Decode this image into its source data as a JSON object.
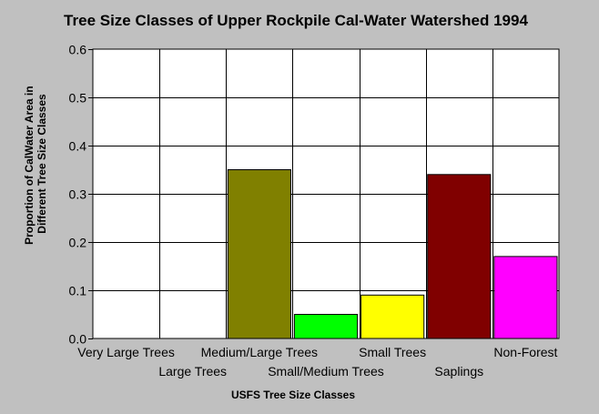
{
  "chart_data": {
    "type": "bar",
    "title": "Tree Size Classes of Upper Rockpile Cal-Water Watershed 1994",
    "xlabel": "USFS Tree Size Classes",
    "ylabel": [
      "Proportion of CalWater Area in",
      "Different Tree Size Classes"
    ],
    "categories": [
      "Very Large Trees",
      "Large Trees",
      "Medium/Large Trees",
      "Small/Medium Trees",
      "Small Trees",
      "Saplings",
      "Non-Forest"
    ],
    "values": [
      0,
      0,
      0.35,
      0.05,
      0.09,
      0.34,
      0.17
    ],
    "colors": [
      "#ffffff",
      "#ffffff",
      "#808000",
      "#00ff00",
      "#ffff00",
      "#800000",
      "#ff00ff"
    ],
    "ylim": [
      0,
      0.6
    ],
    "yticks": [
      0,
      0.1,
      0.2,
      0.3,
      0.4,
      0.5,
      0.6
    ],
    "ytick_labels": [
      "0.0",
      "0.1",
      "0.2",
      "0.3",
      "0.4",
      "0.5",
      "0.6"
    ],
    "grid": true,
    "plot_background": "#ffffff",
    "page_background": "#c0c0c0"
  }
}
